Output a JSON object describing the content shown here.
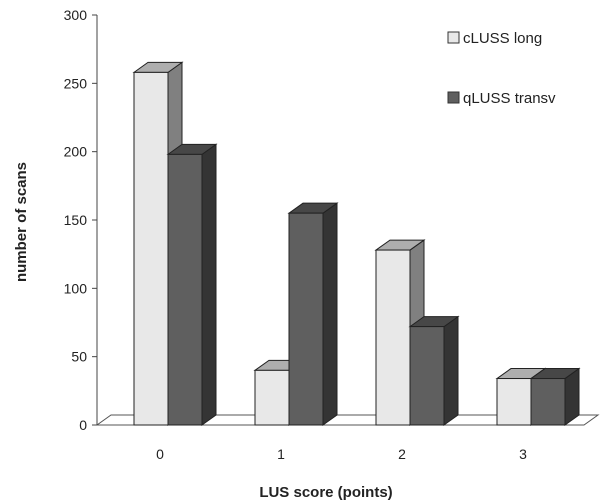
{
  "chart_data": {
    "type": "bar",
    "title": "",
    "xlabel": "LUS score (points)",
    "ylabel": "number of scans",
    "categories": [
      "0",
      "1",
      "2",
      "3"
    ],
    "series": [
      {
        "name": "cLUSS long",
        "values": [
          258,
          40,
          128,
          34
        ],
        "color": "#e8e8e8"
      },
      {
        "name": "qLUSS transv",
        "values": [
          198,
          155,
          72,
          34
        ],
        "color": "#5f5f5f"
      }
    ],
    "ylim": [
      0,
      300
    ],
    "yticks": [
      "0",
      "50",
      "100",
      "150",
      "200",
      "250",
      "300"
    ],
    "grid": false,
    "legend_position": "top-right",
    "style": "3d"
  }
}
